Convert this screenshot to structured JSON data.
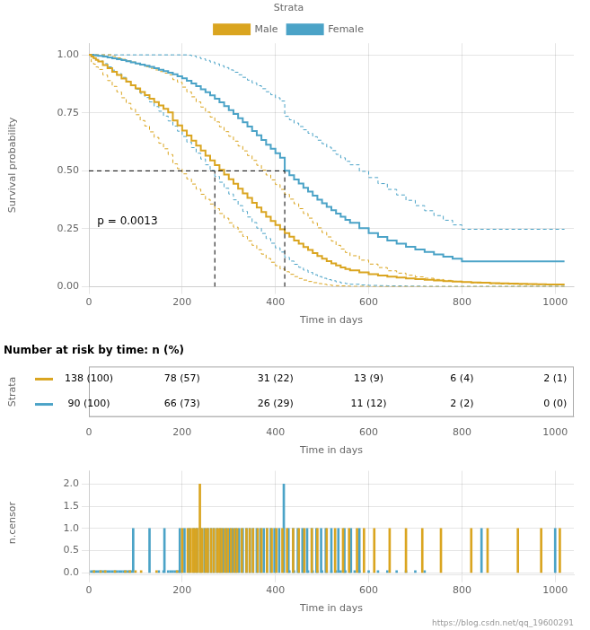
{
  "chart_data": [
    {
      "type": "step",
      "legend_title": "Strata",
      "xlabel": "Time in days",
      "ylabel": "Survival probability",
      "x": [
        0,
        5,
        10,
        15,
        20,
        30,
        40,
        50,
        60,
        70,
        80,
        90,
        100,
        110,
        120,
        130,
        140,
        150,
        160,
        170,
        180,
        190,
        200,
        210,
        220,
        230,
        240,
        250,
        260,
        270,
        280,
        290,
        300,
        310,
        320,
        330,
        340,
        350,
        360,
        370,
        380,
        390,
        400,
        410,
        420,
        430,
        440,
        450,
        460,
        470,
        480,
        490,
        500,
        510,
        520,
        530,
        540,
        550,
        560,
        580,
        600,
        620,
        640,
        660,
        680,
        700,
        720,
        740,
        760,
        780,
        800,
        820,
        840,
        860,
        880,
        900,
        920,
        940,
        960,
        980,
        1000,
        1020
      ],
      "series": [
        {
          "name": "Male",
          "color": "#DAA520",
          "values": [
            1.0,
            0.993,
            0.986,
            0.978,
            0.971,
            0.956,
            0.942,
            0.927,
            0.913,
            0.898,
            0.884,
            0.869,
            0.855,
            0.84,
            0.826,
            0.811,
            0.796,
            0.782,
            0.767,
            0.752,
            0.717,
            0.696,
            0.674,
            0.652,
            0.63,
            0.609,
            0.587,
            0.565,
            0.545,
            0.525,
            0.504,
            0.484,
            0.464,
            0.444,
            0.423,
            0.403,
            0.383,
            0.362,
            0.342,
            0.322,
            0.302,
            0.284,
            0.266,
            0.248,
            0.232,
            0.216,
            0.2,
            0.186,
            0.172,
            0.159,
            0.145,
            0.133,
            0.121,
            0.111,
            0.101,
            0.092,
            0.084,
            0.077,
            0.071,
            0.062,
            0.055,
            0.049,
            0.044,
            0.04,
            0.036,
            0.033,
            0.03,
            0.027,
            0.025,
            0.023,
            0.021,
            0.019,
            0.018,
            0.016,
            0.015,
            0.014,
            0.013,
            0.012,
            0.011,
            0.01,
            0.01,
            0.01
          ],
          "lower": [
            1.0,
            0.97,
            0.96,
            0.948,
            0.937,
            0.913,
            0.889,
            0.864,
            0.84,
            0.815,
            0.791,
            0.766,
            0.742,
            0.717,
            0.693,
            0.668,
            0.644,
            0.619,
            0.595,
            0.57,
            0.53,
            0.509,
            0.487,
            0.465,
            0.443,
            0.421,
            0.399,
            0.377,
            0.357,
            0.337,
            0.316,
            0.296,
            0.276,
            0.257,
            0.237,
            0.217,
            0.198,
            0.179,
            0.16,
            0.141,
            0.122,
            0.106,
            0.091,
            0.077,
            0.065,
            0.054,
            0.044,
            0.036,
            0.029,
            0.023,
            0.018,
            0.014,
            0.011,
            0.008,
            0.006,
            0.005,
            0.004,
            0.003,
            0.002,
            0.002,
            0.001,
            0.001,
            0.001,
            0.001,
            0.001,
            0.001,
            0.001,
            0.001,
            0.001,
            0.001,
            0.001,
            0.001,
            0.001,
            0.001,
            0.001,
            0.001,
            0.001,
            0.001,
            0.001,
            0.001,
            0.001,
            0.001
          ],
          "upper": [
            1.0,
            1.0,
            1.0,
            1.0,
            1.0,
            1.0,
            1.0,
            0.993,
            0.987,
            0.981,
            0.975,
            0.969,
            0.962,
            0.956,
            0.949,
            0.942,
            0.935,
            0.928,
            0.921,
            0.914,
            0.893,
            0.882,
            0.861,
            0.84,
            0.819,
            0.797,
            0.775,
            0.753,
            0.732,
            0.711,
            0.69,
            0.669,
            0.649,
            0.628,
            0.607,
            0.586,
            0.566,
            0.545,
            0.524,
            0.503,
            0.482,
            0.461,
            0.441,
            0.42,
            0.399,
            0.378,
            0.358,
            0.337,
            0.316,
            0.296,
            0.275,
            0.254,
            0.234,
            0.215,
            0.197,
            0.179,
            0.163,
            0.148,
            0.134,
            0.115,
            0.098,
            0.083,
            0.069,
            0.059,
            0.05,
            0.043,
            0.037,
            0.032,
            0.028,
            0.024,
            0.02,
            0.017,
            0.016,
            0.014,
            0.012,
            0.011,
            0.01,
            0.01,
            0.01,
            0.01,
            0.01,
            0.01
          ]
        },
        {
          "name": "Female",
          "color": "#4BA3C7",
          "values": [
            1.0,
            1.0,
            0.999,
            0.998,
            0.996,
            0.993,
            0.989,
            0.985,
            0.981,
            0.977,
            0.972,
            0.968,
            0.963,
            0.958,
            0.953,
            0.948,
            0.942,
            0.936,
            0.93,
            0.923,
            0.916,
            0.908,
            0.899,
            0.888,
            0.877,
            0.865,
            0.852,
            0.839,
            0.825,
            0.811,
            0.795,
            0.779,
            0.762,
            0.745,
            0.727,
            0.709,
            0.691,
            0.672,
            0.653,
            0.633,
            0.613,
            0.595,
            0.576,
            0.557,
            0.5,
            0.481,
            0.463,
            0.445,
            0.427,
            0.41,
            0.393,
            0.376,
            0.36,
            0.345,
            0.33,
            0.316,
            0.302,
            0.289,
            0.276,
            0.253,
            0.232,
            0.215,
            0.2,
            0.186,
            0.173,
            0.161,
            0.15,
            0.14,
            0.13,
            0.121,
            0.11,
            0.11,
            0.11,
            0.11,
            0.11,
            0.11,
            0.11,
            0.11,
            0.11,
            0.11,
            0.11,
            0.11
          ],
          "lower": [
            1.0,
            0.99,
            0.985,
            0.98,
            0.974,
            0.962,
            0.948,
            0.934,
            0.919,
            0.903,
            0.887,
            0.87,
            0.852,
            0.834,
            0.816,
            0.797,
            0.777,
            0.757,
            0.736,
            0.715,
            0.693,
            0.671,
            0.648,
            0.624,
            0.6,
            0.576,
            0.551,
            0.526,
            0.501,
            0.476,
            0.451,
            0.425,
            0.4,
            0.375,
            0.35,
            0.325,
            0.301,
            0.277,
            0.253,
            0.23,
            0.208,
            0.188,
            0.168,
            0.15,
            0.127,
            0.111,
            0.097,
            0.084,
            0.072,
            0.062,
            0.052,
            0.044,
            0.037,
            0.031,
            0.026,
            0.021,
            0.017,
            0.014,
            0.011,
            0.008,
            0.006,
            0.005,
            0.004,
            0.004,
            0.003,
            0.003,
            0.002,
            0.002,
            0.002,
            0.002,
            0.002,
            0.002,
            0.002,
            0.002,
            0.002,
            0.002,
            0.002,
            0.002,
            0.002,
            0.002,
            0.002,
            0.002
          ],
          "upper": [
            1.0,
            1.0,
            1.0,
            1.0,
            1.0,
            1.0,
            1.0,
            1.0,
            1.0,
            1.0,
            1.0,
            1.0,
            1.0,
            1.0,
            1.0,
            1.0,
            1.0,
            1.0,
            1.0,
            1.0,
            1.0,
            1.0,
            1.0,
            0.999,
            0.995,
            0.989,
            0.983,
            0.976,
            0.969,
            0.961,
            0.953,
            0.945,
            0.935,
            0.925,
            0.914,
            0.903,
            0.891,
            0.879,
            0.867,
            0.854,
            0.841,
            0.828,
            0.815,
            0.801,
            0.735,
            0.72,
            0.706,
            0.691,
            0.677,
            0.662,
            0.647,
            0.632,
            0.617,
            0.602,
            0.587,
            0.571,
            0.556,
            0.541,
            0.526,
            0.498,
            0.471,
            0.445,
            0.42,
            0.396,
            0.373,
            0.35,
            0.328,
            0.307,
            0.287,
            0.267,
            0.248,
            0.248,
            0.248,
            0.248,
            0.248,
            0.248,
            0.248,
            0.248,
            0.248,
            0.248,
            0.248,
            0.248
          ]
        }
      ],
      "reference_lines": [
        {
          "x": [
            0,
            420
          ],
          "y": [
            0.5,
            0.5
          ]
        },
        {
          "x": [
            270,
            270
          ],
          "y": [
            0,
            0.5
          ]
        },
        {
          "x": [
            420,
            420
          ],
          "y": [
            0,
            0.5
          ]
        }
      ],
      "annotations": [
        {
          "text": "p = 0.0013",
          "x": 18,
          "y": 0.27
        }
      ],
      "xlim": [
        0,
        1040
      ],
      "xticks": [
        0,
        200,
        400,
        600,
        800,
        1000
      ],
      "ylim": [
        0,
        1.05
      ],
      "yticks": [
        {
          "value": 0,
          "label": "0.00"
        },
        0.25,
        {
          "value": 0.5,
          "label": "0.50"
        },
        0.75,
        {
          "value": 1,
          "label": "1.00"
        }
      ],
      "grid": true,
      "legend": "top"
    },
    {
      "type": "table",
      "title": "Number at risk by time: n (%)",
      "ylabel": "Strata",
      "xlabel": "Time in days",
      "x": [
        0,
        200,
        400,
        600,
        800,
        1000
      ],
      "series": [
        {
          "color": "#DAA520",
          "labels": [
            "138 (100)",
            "78 (57)",
            "31 (22)",
            "13 (9)",
            "6 (4)",
            "2 (1)"
          ]
        },
        {
          "color": "#4BA3C7",
          "labels": [
            "90 (100)",
            "66 (73)",
            "26 (29)",
            "11 (12)",
            "2 (2)",
            "0 (0)"
          ]
        }
      ],
      "xlim": [
        0,
        1040
      ],
      "xticks": [
        0,
        200,
        400,
        600,
        800,
        1000
      ]
    },
    {
      "type": "bar",
      "xlabel": "Time in days",
      "ylabel": "n.censor",
      "note": "https://blog.csdn.net/qq_19600291",
      "series": [
        {
          "color": "#DAA520",
          "x": [
            11,
            25,
            35,
            56,
            78,
            88,
            100,
            112,
            145,
            189
          ],
          "values": [
            0.05,
            0.05,
            0.05,
            0.05,
            0.05,
            0.05,
            0.05,
            0.05,
            0.05,
            0.05
          ]
        },
        {
          "color": "#DAA520",
          "x": [
            200,
            212,
            218,
            223,
            228,
            232,
            238,
            243,
            250,
            255,
            262,
            268,
            275,
            280,
            285,
            292,
            298,
            305,
            312,
            318,
            328,
            338,
            345,
            352,
            362,
            370,
            382,
            392,
            402,
            415,
            425,
            438,
            450,
            462,
            478,
            490,
            510,
            528,
            545,
            558,
            575,
            590,
            612,
            645,
            680,
            715,
            755,
            820,
            855,
            920,
            970,
            1010
          ],
          "values": [
            1.0,
            1.0,
            1.0,
            1.0,
            1.0,
            1.0,
            2.0,
            1.0,
            1.0,
            1.0,
            1.0,
            1.0,
            1.0,
            1.0,
            1.0,
            1.0,
            1.0,
            1.0,
            1.0,
            1.0,
            1.0,
            1.0,
            1.0,
            1.0,
            1.0,
            1.0,
            1.0,
            1.0,
            1.0,
            1.0,
            1.0,
            1.0,
            1.0,
            1.0,
            1.0,
            1.0,
            1.0,
            1.0,
            1.0,
            1.0,
            1.0,
            1.0,
            1.0,
            1.0,
            1.0,
            1.0,
            1.0,
            1.0,
            1.0,
            1.0,
            1.0,
            1.0
          ]
        },
        {
          "color": "#4BA3C7",
          "x": [
            5,
            10,
            15,
            20,
            25,
            30,
            35,
            40,
            45,
            50,
            55,
            60,
            65,
            70,
            75,
            80,
            85,
            90,
            150,
            160,
            170,
            175,
            180,
            185,
            190,
            195,
            430,
            440,
            450,
            460,
            470,
            480,
            490,
            500,
            510,
            520,
            530,
            540,
            550,
            560,
            570,
            580,
            600,
            620,
            640,
            660,
            680,
            700,
            720
          ],
          "values": [
            0.05,
            0.05,
            0.05,
            0.05,
            0.05,
            0.05,
            0.05,
            0.05,
            0.05,
            0.05,
            0.05,
            0.05,
            0.05,
            0.05,
            0.05,
            0.05,
            0.05,
            0.05,
            0.05,
            0.05,
            0.05,
            0.05,
            0.05,
            0.05,
            0.05,
            0.05,
            0.05,
            0.05,
            0.05,
            0.05,
            0.05,
            0.05,
            0.05,
            0.05,
            0.05,
            0.05,
            0.05,
            0.05,
            0.05,
            0.05,
            0.05,
            0.05,
            0.05,
            0.05,
            0.05,
            0.05,
            0.05,
            0.05,
            0.05
          ]
        },
        {
          "color": "#4BA3C7",
          "x": [
            95,
            130,
            162,
            195,
            205,
            215,
            225,
            232,
            240,
            248,
            255,
            262,
            268,
            275,
            282,
            288,
            295,
            302,
            308,
            315,
            322,
            330,
            338,
            345,
            352,
            360,
            368,
            375,
            382,
            390,
            398,
            408,
            418,
            428,
            438,
            448,
            458,
            468,
            478,
            488,
            498,
            508,
            520,
            535,
            548,
            562,
            580,
            842,
            1000
          ],
          "values": [
            1.0,
            1.0,
            1.0,
            1.0,
            1.0,
            1.0,
            1.0,
            1.0,
            1.0,
            1.0,
            1.0,
            1.0,
            1.0,
            1.0,
            1.0,
            1.0,
            1.0,
            1.0,
            1.0,
            1.0,
            1.0,
            1.0,
            1.0,
            1.0,
            1.0,
            1.0,
            1.0,
            1.0,
            1.0,
            1.0,
            1.0,
            1.0,
            2.0,
            1.0,
            1.0,
            1.0,
            1.0,
            1.0,
            1.0,
            1.0,
            1.0,
            1.0,
            1.0,
            1.0,
            1.0,
            1.0,
            1.0,
            1.0,
            1.0
          ]
        }
      ],
      "xlim": [
        0,
        1040
      ],
      "xticks": [
        0,
        200,
        400,
        600,
        800,
        1000
      ],
      "ylim": [
        -0.05,
        2.3
      ],
      "yticks": [
        {
          "value": 0,
          "label": "0.0"
        },
        0.5,
        {
          "value": 1,
          "label": "1.0"
        },
        1.5,
        {
          "value": 2,
          "label": "2.0"
        }
      ],
      "grid": true
    }
  ]
}
